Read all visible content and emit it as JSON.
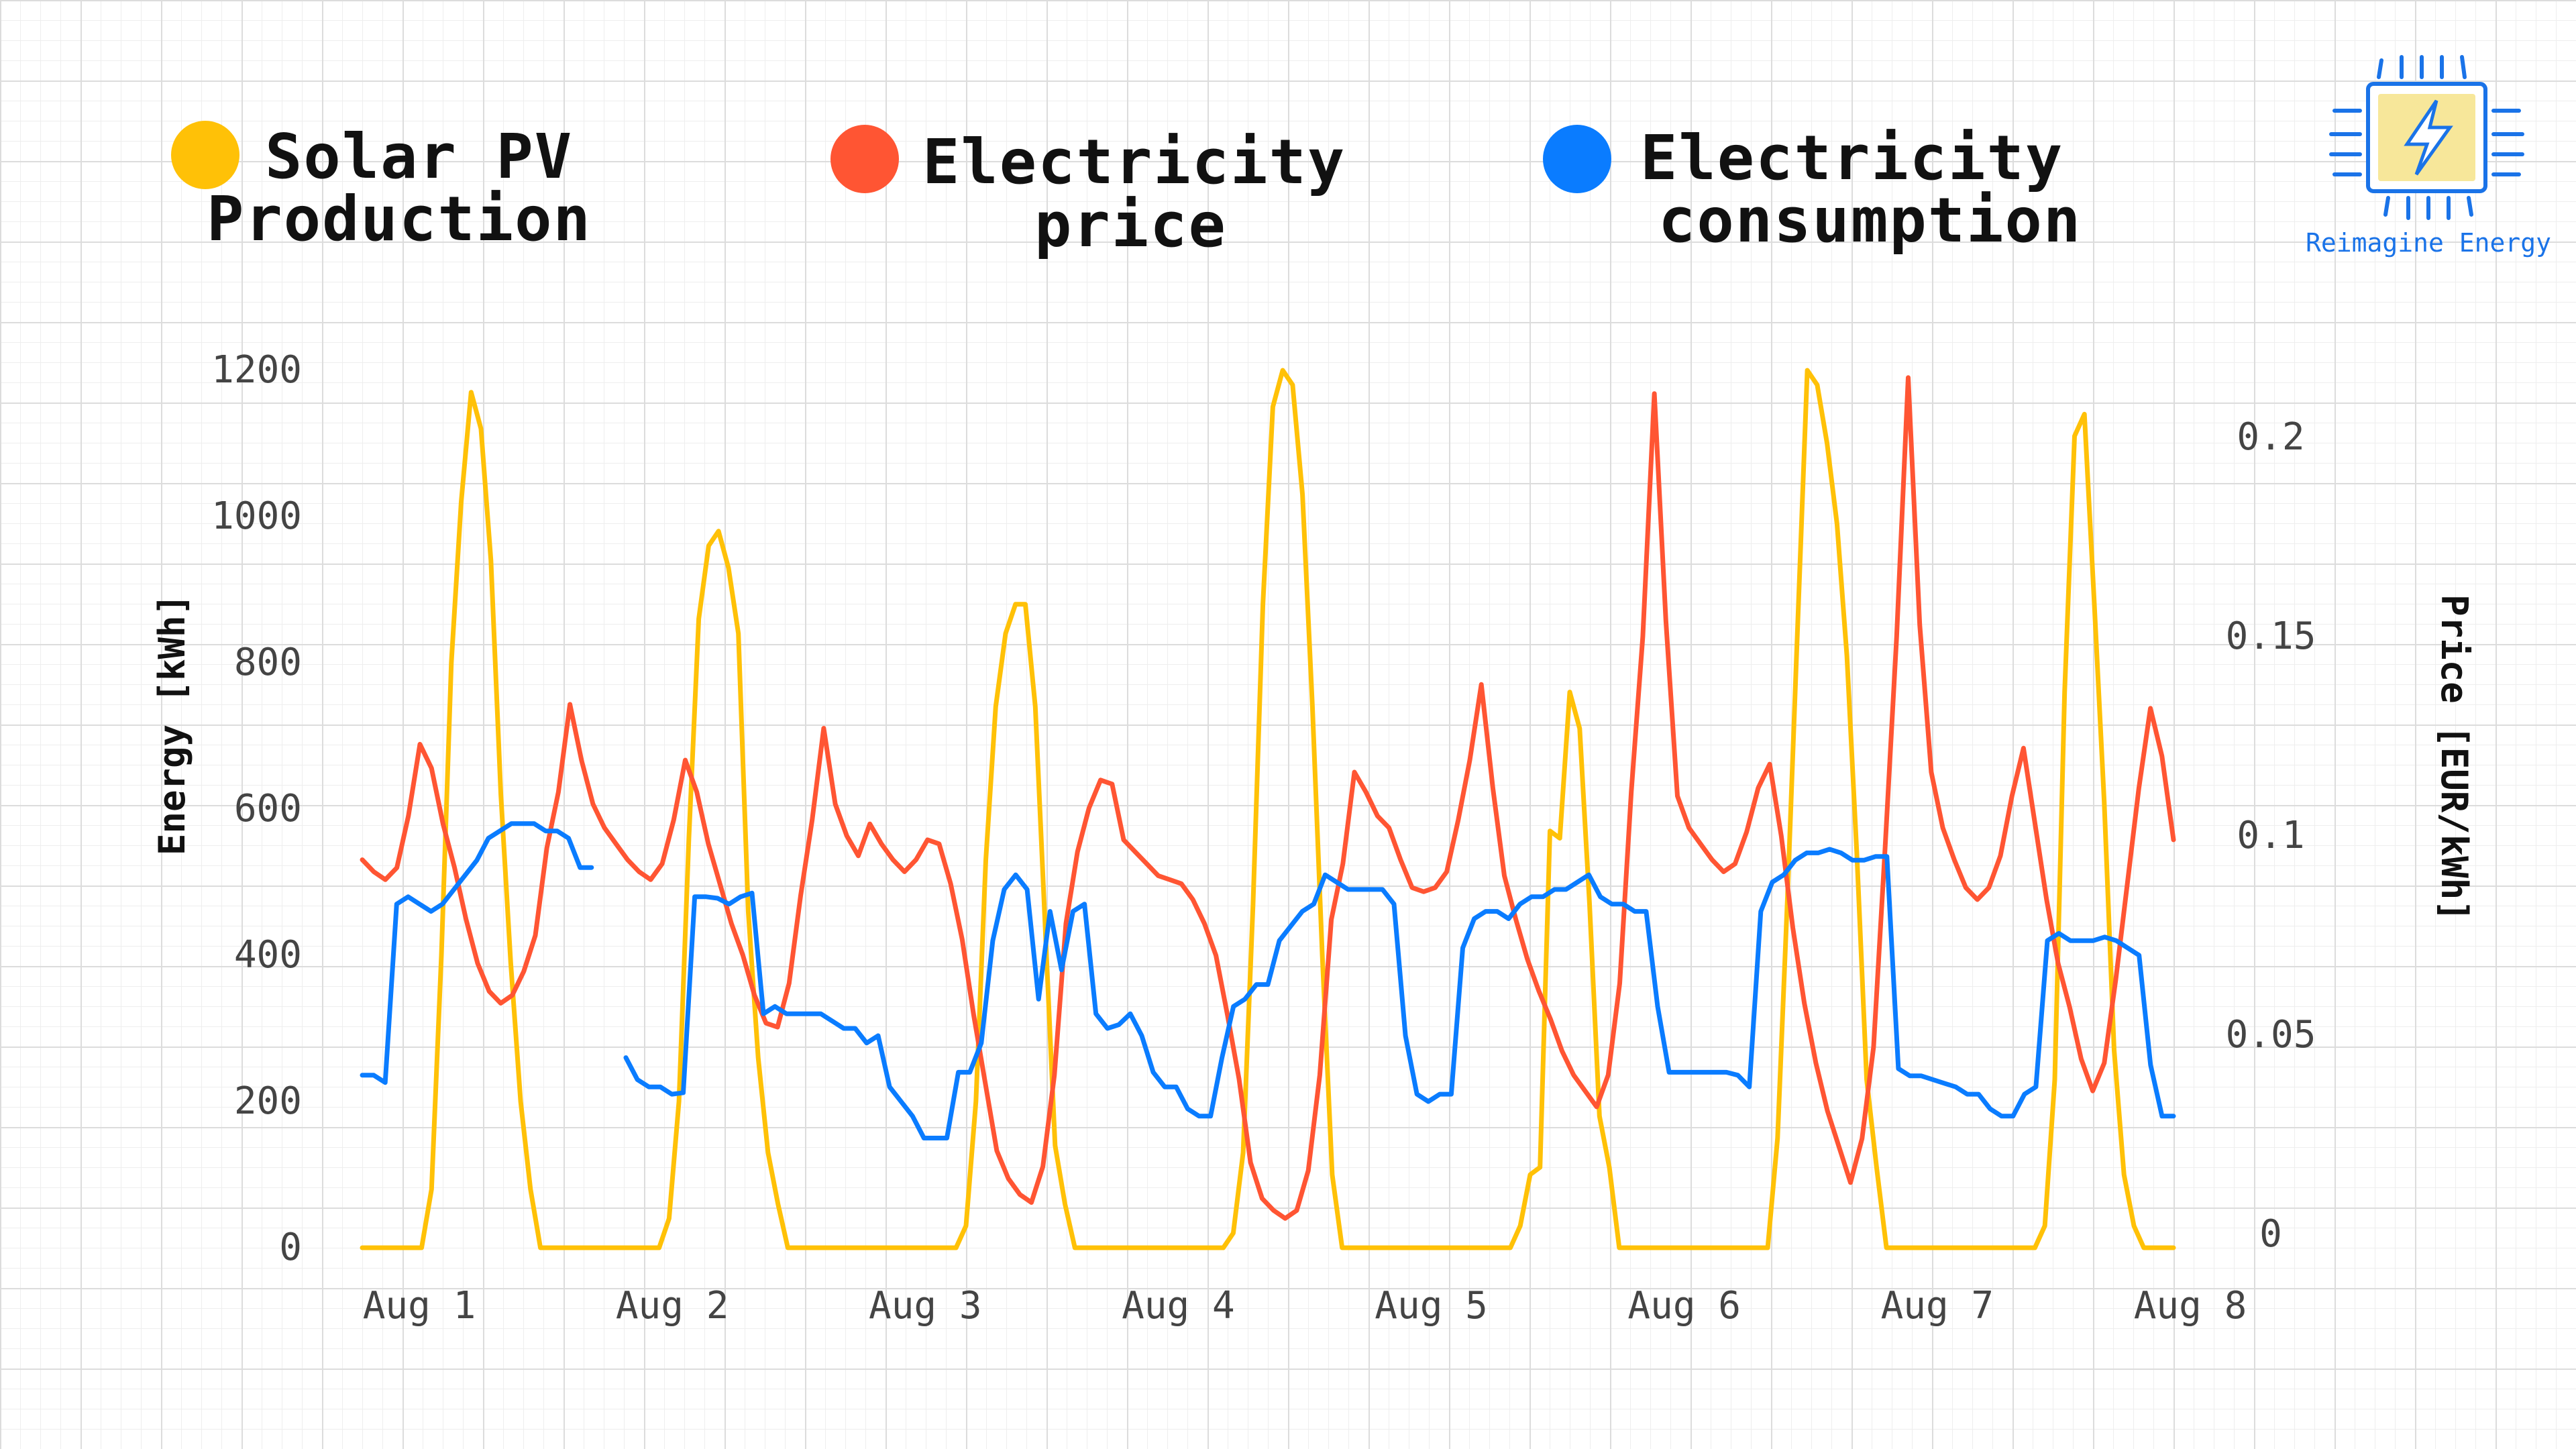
{
  "brand": {
    "name": "Reimagine Energy",
    "icon": "lightning-chip-icon"
  },
  "legend": [
    {
      "line1": "Solar PV",
      "line2": "Production",
      "color": "#FFC107"
    },
    {
      "line1": "Electricity",
      "line2": "price",
      "color": "#FF5533"
    },
    {
      "line1": "Electricity",
      "line2": "consumption",
      "color": "#0A7CFF"
    }
  ],
  "chart_data": {
    "type": "line",
    "grid": true,
    "legend_position": "top",
    "xlabel": "",
    "x_ticks": [
      "Aug 1",
      "Aug 2",
      "Aug 3",
      "Aug 4",
      "Aug 5",
      "Aug 6",
      "Aug 7",
      "Aug 8"
    ],
    "y_left": {
      "label": "Energy [kWh]",
      "ticks": [
        0,
        200,
        400,
        600,
        800,
        1000,
        1200
      ],
      "range": [
        0,
        1200
      ]
    },
    "y_right": {
      "label": "Price [EUR/kWh]",
      "ticks": [
        "0",
        "0.05",
        "0.1",
        "0.15",
        "0.2"
      ],
      "range": [
        0,
        0.2
      ]
    },
    "series": [
      {
        "name": "Solar PV Production",
        "axis": "left",
        "color": "#FFC107",
        "values": [
          0,
          0,
          0,
          0,
          0,
          0,
          0,
          80,
          400,
          800,
          1020,
          1170,
          1120,
          940,
          620,
          390,
          200,
          80,
          0,
          0,
          0,
          0,
          0,
          0,
          0,
          0,
          0,
          0,
          0,
          0,
          0,
          40,
          200,
          560,
          860,
          960,
          980,
          930,
          840,
          460,
          260,
          130,
          60,
          0,
          0,
          0,
          0,
          0,
          0,
          0,
          0,
          0,
          0,
          0,
          0,
          0,
          0,
          0,
          0,
          0,
          0,
          30,
          200,
          530,
          740,
          840,
          880,
          880,
          740,
          440,
          140,
          60,
          0,
          0,
          0,
          0,
          0,
          0,
          0,
          0,
          0,
          0,
          0,
          0,
          0,
          0,
          0,
          0,
          20,
          130,
          470,
          880,
          1150,
          1200,
          1180,
          1030,
          740,
          400,
          100,
          0,
          0,
          0,
          0,
          0,
          0,
          0,
          0,
          0,
          0,
          0,
          0,
          0,
          0,
          0,
          0,
          0,
          0,
          30,
          100,
          110,
          570,
          560,
          760,
          710,
          470,
          180,
          110,
          0,
          0,
          0,
          0,
          0,
          0,
          0,
          0,
          0,
          0,
          0,
          0,
          0,
          0,
          0,
          0,
          150,
          480,
          840,
          1200,
          1180,
          1100,
          990,
          810,
          540,
          230,
          110,
          0,
          0,
          0,
          0,
          0,
          0,
          0,
          0,
          0,
          0,
          0,
          0,
          0,
          0,
          0,
          0,
          30,
          230,
          760,
          1110,
          1140,
          880,
          610,
          270,
          100,
          30,
          0,
          0,
          0,
          0
        ]
      },
      {
        "name": "Electricity price",
        "axis": "right",
        "color": "#FF5533",
        "values": [
          0.094,
          0.091,
          0.089,
          0.092,
          0.105,
          0.123,
          0.117,
          0.103,
          0.092,
          0.079,
          0.068,
          0.061,
          0.058,
          0.06,
          0.066,
          0.075,
          0.097,
          0.111,
          0.133,
          0.119,
          0.108,
          0.102,
          0.098,
          0.094,
          0.091,
          0.089,
          0.093,
          0.104,
          0.119,
          0.111,
          0.098,
          0.088,
          0.078,
          0.07,
          0.06,
          0.053,
          0.052,
          0.063,
          0.085,
          0.104,
          0.127,
          0.108,
          0.1,
          0.095,
          0.103,
          0.098,
          0.094,
          0.091,
          0.094,
          0.099,
          0.098,
          0.088,
          0.074,
          0.055,
          0.038,
          0.021,
          0.014,
          0.01,
          0.008,
          0.017,
          0.04,
          0.078,
          0.096,
          0.107,
          0.114,
          0.113,
          0.099,
          0.096,
          0.093,
          0.09,
          0.089,
          0.088,
          0.084,
          0.078,
          0.07,
          0.055,
          0.039,
          0.018,
          0.009,
          0.006,
          0.004,
          0.006,
          0.016,
          0.04,
          0.079,
          0.093,
          0.116,
          0.111,
          0.105,
          0.102,
          0.094,
          0.087,
          0.086,
          0.087,
          0.091,
          0.104,
          0.119,
          0.138,
          0.112,
          0.09,
          0.079,
          0.069,
          0.061,
          0.054,
          0.046,
          0.04,
          0.036,
          0.032,
          0.04,
          0.063,
          0.111,
          0.15,
          0.211,
          0.154,
          0.11,
          0.102,
          0.098,
          0.094,
          0.091,
          0.093,
          0.101,
          0.112,
          0.118,
          0.1,
          0.077,
          0.058,
          0.043,
          0.031,
          0.022,
          0.013,
          0.024,
          0.047,
          0.097,
          0.15,
          0.215,
          0.153,
          0.116,
          0.102,
          0.094,
          0.087,
          0.084,
          0.087,
          0.095,
          0.11,
          0.122,
          0.103,
          0.084,
          0.068,
          0.057,
          0.044,
          0.036,
          0.043,
          0.064,
          0.088,
          0.112,
          0.132,
          0.12,
          0.099
        ]
      },
      {
        "name": "Electricity consumption",
        "axis": "left",
        "color": "#0A7CFF",
        "values": [
          236,
          236,
          226,
          470,
          480,
          470,
          460,
          470,
          490,
          510,
          530,
          560,
          570,
          580,
          580,
          580,
          570,
          570,
          560,
          520,
          520,
          null,
          null,
          260,
          230,
          220,
          220,
          210,
          212,
          480,
          480,
          478,
          470,
          480,
          485,
          320,
          330,
          320,
          320,
          320,
          320,
          310,
          300,
          300,
          280,
          290,
          220,
          200,
          180,
          150,
          150,
          150,
          240,
          240,
          280,
          420,
          490,
          510,
          490,
          340,
          460,
          380,
          460,
          470,
          320,
          300,
          305,
          320,
          290,
          240,
          220,
          220,
          190,
          180,
          180,
          260,
          330,
          340,
          360,
          360,
          420,
          440,
          460,
          470,
          510,
          500,
          490,
          490,
          490,
          490,
          470,
          290,
          210,
          200,
          210,
          210,
          410,
          450,
          460,
          460,
          450,
          470,
          480,
          480,
          490,
          490,
          500,
          510,
          480,
          470,
          470,
          460,
          460,
          330,
          240,
          240,
          240,
          240,
          240,
          240,
          236,
          220,
          460,
          500,
          510,
          530,
          540,
          540,
          545,
          540,
          530,
          530,
          535,
          535,
          245,
          235,
          235,
          230,
          225,
          220,
          210,
          210,
          190,
          180,
          180,
          210,
          220,
          420,
          430,
          420,
          420,
          420,
          425,
          420,
          410,
          400,
          250,
          180,
          180
        ]
      }
    ]
  }
}
